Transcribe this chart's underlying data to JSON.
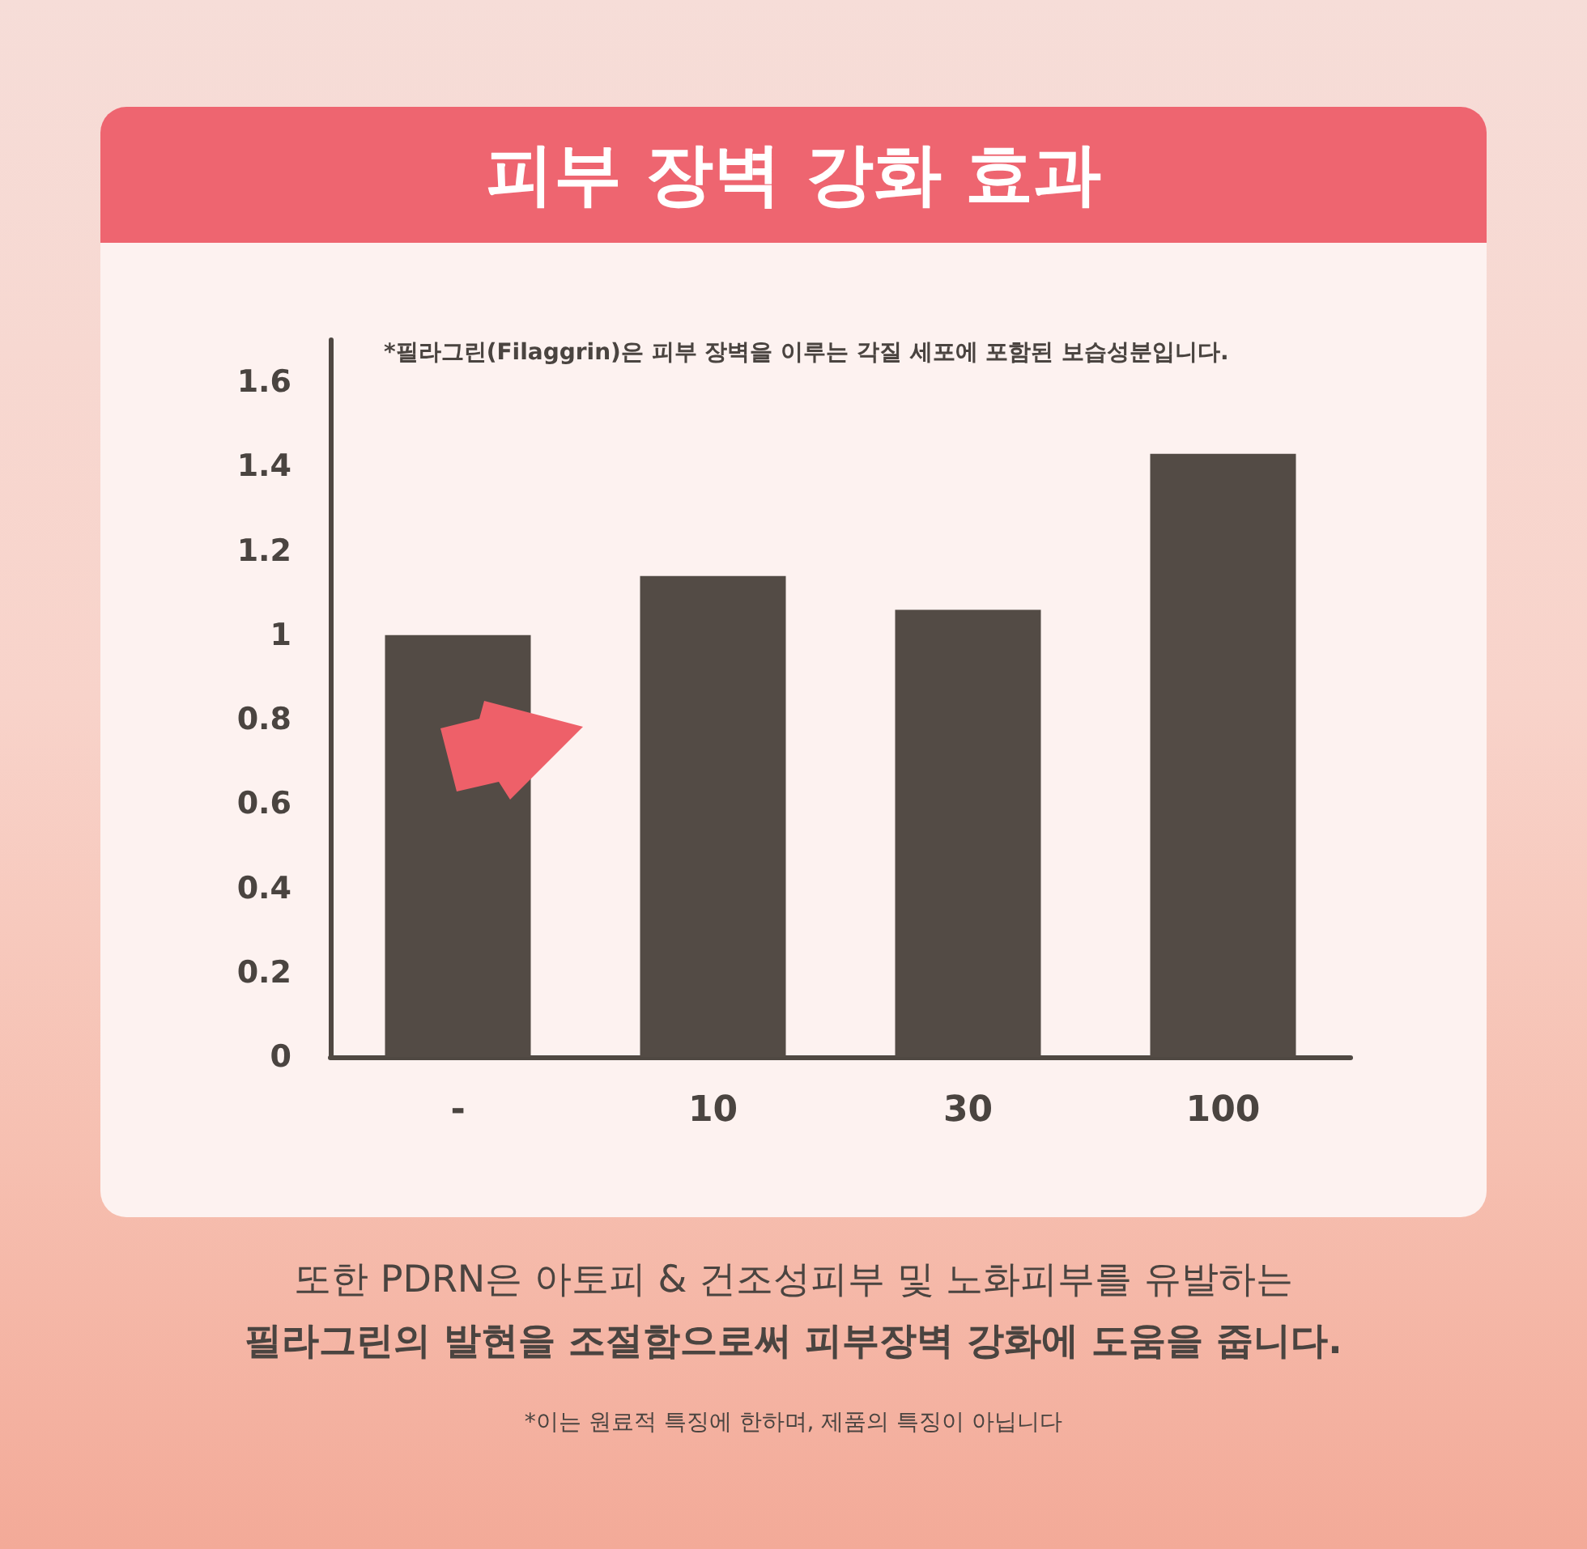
{
  "chart_data": {
    "type": "bar",
    "title": "피부 장벽 강화 효과",
    "categories": [
      "-",
      "10",
      "30",
      "100"
    ],
    "values": [
      1,
      1.14,
      1.06,
      1.43
    ],
    "color": "#534b45",
    "ylim": [
      0,
      1.7
    ],
    "yticks": [
      0,
      0.2,
      0.4,
      0.6,
      0.8,
      1,
      1.2,
      1.4,
      1.6
    ],
    "annotations": [
      "*필라그린(Filaggrin)은 피부 장벽을 이루는 각질 세포에 포함된 보습성분입니다.",
      "또한 PDRN은 아토피 & 건조성피부 및 노화피부를 유발하는",
      "필라그린의 발현을 조절함으로써 피부장벽 강화에 도움을 줍니다.",
      "*이는 원료적 특징에 한하며, 제품의 특징이 아닙니다"
    ]
  }
}
